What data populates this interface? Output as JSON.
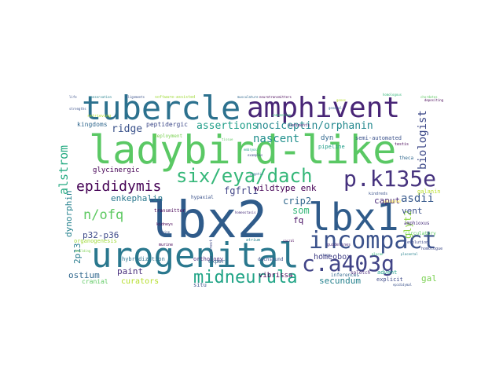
{
  "words": [
    {
      "text": "lbx2",
      "color": "#2f5b8a"
    },
    {
      "text": "lbx1",
      "color": "#2f5b8a"
    },
    {
      "text": "ladybird-like",
      "color": "#5ac864"
    },
    {
      "text": "urogenital",
      "color": "#2a788e"
    },
    {
      "text": "tubercle",
      "color": "#2c718e"
    },
    {
      "text": "amphivent",
      "color": "#482576"
    },
    {
      "text": "incompact",
      "color": "#3b528b"
    },
    {
      "text": "c.a403g",
      "color": "#414487"
    },
    {
      "text": "p.k135e",
      "color": "#46327e"
    },
    {
      "text": "six/eya/dach",
      "color": "#35b779"
    },
    {
      "text": "midneurula",
      "color": "#20a486"
    },
    {
      "text": "epididymis",
      "color": "#440154"
    },
    {
      "text": "n/ofq",
      "color": "#5ec962"
    },
    {
      "text": "nociceptin/orphanin",
      "color": "#23888e"
    },
    {
      "text": "assertions",
      "color": "#1f9e89"
    },
    {
      "text": "alstrom",
      "color": "#25ab82"
    },
    {
      "text": "biologist",
      "color": "#3e4a89"
    },
    {
      "text": "asdii",
      "color": "#38598c"
    },
    {
      "text": "nascent",
      "color": "#21908d"
    },
    {
      "text": "ridge",
      "color": "#3b528b"
    },
    {
      "text": "crip2",
      "color": "#31688e"
    },
    {
      "text": "glyt2",
      "color": "#90d743"
    },
    {
      "text": "dynorphin",
      "color": "#26828e"
    },
    {
      "text": "fgfrl1",
      "color": "#414487"
    },
    {
      "text": "wildtype enk",
      "color": "#440154"
    },
    {
      "text": "enkephalin",
      "color": "#2a788e"
    },
    {
      "text": "som",
      "color": "#35b779"
    },
    {
      "text": "fq",
      "color": "#471063"
    },
    {
      "text": "vent",
      "color": "#3b528b"
    },
    {
      "text": "caput",
      "color": "#482878"
    },
    {
      "text": "p32-p36",
      "color": "#3e4a89"
    },
    {
      "text": "2p13",
      "color": "#287c8e"
    },
    {
      "text": "ostium",
      "color": "#31688e"
    },
    {
      "text": "paint",
      "color": "#472d7b"
    },
    {
      "text": "curators",
      "color": "#b5de2b"
    },
    {
      "text": "secundum",
      "color": "#26828e"
    },
    {
      "text": "gal",
      "color": "#7ad151"
    },
    {
      "text": "homeobox",
      "color": "#424086"
    },
    {
      "text": "vibrissa",
      "color": "#440154"
    },
    {
      "text": "kingdoms",
      "color": "#31688e"
    },
    {
      "text": "peptidergic",
      "color": "#3e4a89"
    },
    {
      "text": "glycinergic",
      "color": "#440154"
    },
    {
      "text": "dyn",
      "color": "#31688e"
    },
    {
      "text": "pipeline",
      "color": "#1f9e89"
    },
    {
      "text": "semi-automated",
      "color": "#3b528b"
    },
    {
      "text": "hybridization",
      "color": "#2c728e"
    },
    {
      "text": "orthology",
      "color": "#482878"
    },
    {
      "text": "dachshund",
      "color": "#3b528b"
    },
    {
      "text": "organogenesis",
      "color": "#a0da39"
    },
    {
      "text": "cranial",
      "color": "#5ec962"
    },
    {
      "text": "situ",
      "color": "#3b528b"
    },
    {
      "text": "explicit",
      "color": "#3e4a89"
    },
    {
      "text": "advent",
      "color": "#1f9e89"
    },
    {
      "text": "inferences",
      "color": "#31688e"
    },
    {
      "text": "amphioxus",
      "color": "#472d7b"
    },
    {
      "text": "galanin",
      "color": "#b8de29"
    },
    {
      "text": "circulatory",
      "color": "#5ec962"
    },
    {
      "text": "evolution",
      "color": "#3e4a89"
    },
    {
      "text": "splotch",
      "color": "#482576"
    },
    {
      "text": "expert",
      "color": "#31688e"
    },
    {
      "text": "transmitter",
      "color": "#440154"
    },
    {
      "text": "murine",
      "color": "#440154"
    },
    {
      "text": "hypaxial",
      "color": "#3b528b"
    },
    {
      "text": "atrium",
      "color": "#26828e"
    },
    {
      "text": "guidelines",
      "color": "#482878"
    },
    {
      "text": "homologue",
      "color": "#3e4a89"
    },
    {
      "text": "theca",
      "color": "#31688e"
    },
    {
      "text": "testis",
      "color": "#440154"
    },
    {
      "text": "kindreds",
      "color": "#3b528b"
    },
    {
      "text": "rudiments",
      "color": "#482576"
    },
    {
      "text": "deployment",
      "color": "#7ad151"
    },
    {
      "text": "retrieving",
      "color": "#b5de2b"
    },
    {
      "text": "software-assisted",
      "color": "#a0da39"
    },
    {
      "text": "alignments",
      "color": "#3b528b"
    },
    {
      "text": "conservation",
      "color": "#26828e"
    },
    {
      "text": "musculature",
      "color": "#31688e"
    },
    {
      "text": "neurotransmitters",
      "color": "#440154"
    },
    {
      "text": "genes",
      "color": "#b5de2b"
    },
    {
      "text": "chordates",
      "color": "#5ec962"
    },
    {
      "text": "epididymal",
      "color": "#3b528b"
    },
    {
      "text": "compendium",
      "color": "#35b779"
    },
    {
      "text": "crest",
      "color": "#3e4a89"
    },
    {
      "text": "zygotic",
      "color": "#31688e"
    },
    {
      "text": "sacral",
      "color": "#440154"
    },
    {
      "text": "strengths",
      "color": "#3b528b"
    },
    {
      "text": "embryos",
      "color": "#1f9e89"
    },
    {
      "text": "homeostasis",
      "color": "#472d7b"
    },
    {
      "text": "homologous",
      "color": "#35b779"
    },
    {
      "text": "validated",
      "color": "#fde725"
    },
    {
      "text": "life",
      "color": "#3b528b"
    },
    {
      "text": "tissue",
      "color": "#5ec962"
    },
    {
      "text": "examples",
      "color": "#3e4a89"
    },
    {
      "text": "depositing",
      "color": "#440154"
    },
    {
      "text": "placental",
      "color": "#26828e"
    },
    {
      "text": "general",
      "color": "#31688e"
    },
    {
      "text": "spine",
      "color": "#3b528b"
    },
    {
      "text": "building",
      "color": "#7ad151"
    },
    {
      "text": "kidneys",
      "color": "#440154"
    },
    {
      "text": "glycan",
      "color": "#35b779"
    },
    {
      "text": "stage",
      "color": "#3e4a89"
    }
  ]
}
